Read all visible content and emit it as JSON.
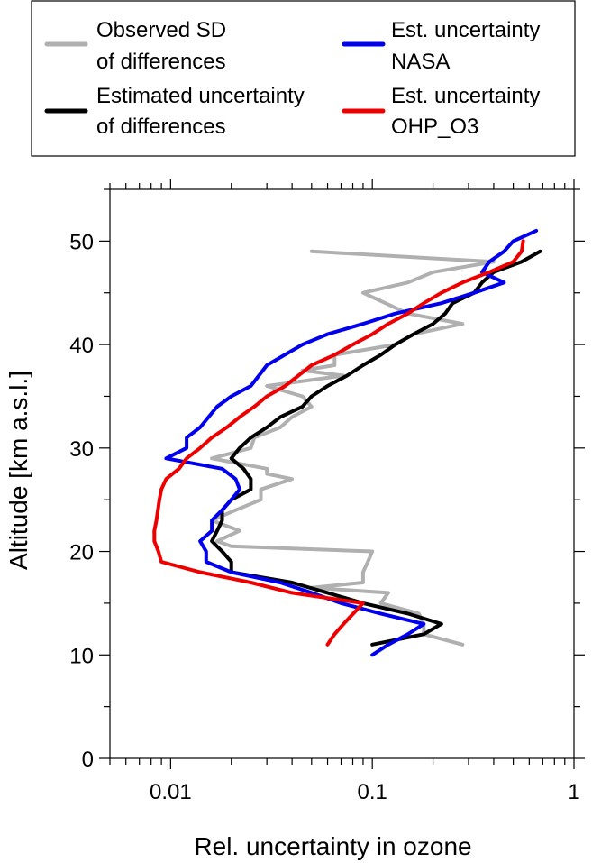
{
  "chart_data": {
    "type": "line",
    "xlabel": "Rel. uncertainty in ozone",
    "ylabel": "Altitude [km a.s.l.]",
    "xscale": "log",
    "xlim": [
      0.005,
      1
    ],
    "ylim": [
      0,
      55
    ],
    "x_tick_labels": [
      {
        "value": 0.01,
        "label": "0.01"
      },
      {
        "value": 0.1,
        "label": "0.1"
      },
      {
        "value": 1,
        "label": "1"
      }
    ],
    "y_ticks": [
      0,
      10,
      20,
      30,
      40,
      50
    ],
    "legend_position": "top",
    "series": [
      {
        "name_lines": [
          "Observed SD",
          "of differences"
        ],
        "color": "#b0b0b0",
        "points": [
          [
            0.28,
            11
          ],
          [
            0.18,
            12
          ],
          [
            0.18,
            13
          ],
          [
            0.17,
            14
          ],
          [
            0.11,
            15
          ],
          [
            0.12,
            16
          ],
          [
            0.05,
            16.5
          ],
          [
            0.09,
            17
          ],
          [
            0.09,
            18
          ],
          [
            0.095,
            19
          ],
          [
            0.1,
            20
          ],
          [
            0.02,
            20.5
          ],
          [
            0.017,
            21
          ],
          [
            0.022,
            22
          ],
          [
            0.016,
            23
          ],
          [
            0.021,
            24
          ],
          [
            0.028,
            25
          ],
          [
            0.028,
            26
          ],
          [
            0.04,
            27
          ],
          [
            0.03,
            27.5
          ],
          [
            0.03,
            28
          ],
          [
            0.016,
            29
          ],
          [
            0.025,
            30
          ],
          [
            0.026,
            31
          ],
          [
            0.035,
            32
          ],
          [
            0.04,
            33
          ],
          [
            0.05,
            34
          ],
          [
            0.045,
            35
          ],
          [
            0.03,
            36
          ],
          [
            0.072,
            37
          ],
          [
            0.045,
            37.5
          ],
          [
            0.065,
            38
          ],
          [
            0.065,
            39
          ],
          [
            0.13,
            40
          ],
          [
            0.16,
            41
          ],
          [
            0.28,
            42
          ],
          [
            0.15,
            43
          ],
          [
            0.09,
            45
          ],
          [
            0.15,
            46
          ],
          [
            0.2,
            47
          ],
          [
            0.4,
            48
          ],
          [
            0.05,
            49
          ]
        ]
      },
      {
        "name_lines": [
          "Estimated uncertainty",
          "of differences"
        ],
        "color": "#000000",
        "points": [
          [
            0.1,
            11
          ],
          [
            0.18,
            12
          ],
          [
            0.22,
            13
          ],
          [
            0.15,
            14
          ],
          [
            0.09,
            15
          ],
          [
            0.06,
            16
          ],
          [
            0.04,
            17
          ],
          [
            0.02,
            18
          ],
          [
            0.02,
            19
          ],
          [
            0.018,
            20
          ],
          [
            0.016,
            21
          ],
          [
            0.017,
            22
          ],
          [
            0.018,
            23
          ],
          [
            0.018,
            24
          ],
          [
            0.02,
            25
          ],
          [
            0.025,
            26
          ],
          [
            0.025,
            27
          ],
          [
            0.023,
            28
          ],
          [
            0.02,
            29
          ],
          [
            0.022,
            30
          ],
          [
            0.025,
            31
          ],
          [
            0.03,
            32
          ],
          [
            0.035,
            33
          ],
          [
            0.045,
            34
          ],
          [
            0.05,
            35
          ],
          [
            0.06,
            36
          ],
          [
            0.075,
            37
          ],
          [
            0.09,
            38
          ],
          [
            0.11,
            39
          ],
          [
            0.13,
            40
          ],
          [
            0.16,
            41
          ],
          [
            0.2,
            42
          ],
          [
            0.23,
            43
          ],
          [
            0.25,
            44
          ],
          [
            0.32,
            45
          ],
          [
            0.35,
            46
          ],
          [
            0.4,
            47
          ],
          [
            0.55,
            48
          ],
          [
            0.68,
            49
          ]
        ]
      },
      {
        "name_lines": [
          "Est. uncertainty",
          "NASA"
        ],
        "color": "#0000ee",
        "points": [
          [
            0.1,
            10
          ],
          [
            0.12,
            11
          ],
          [
            0.15,
            12
          ],
          [
            0.18,
            13
          ],
          [
            0.11,
            14
          ],
          [
            0.07,
            15
          ],
          [
            0.05,
            16
          ],
          [
            0.035,
            17
          ],
          [
            0.02,
            18
          ],
          [
            0.015,
            19
          ],
          [
            0.015,
            20
          ],
          [
            0.014,
            21
          ],
          [
            0.016,
            22
          ],
          [
            0.016,
            23
          ],
          [
            0.018,
            24
          ],
          [
            0.02,
            25
          ],
          [
            0.022,
            26
          ],
          [
            0.021,
            27
          ],
          [
            0.018,
            28
          ],
          [
            0.0095,
            29
          ],
          [
            0.012,
            30
          ],
          [
            0.012,
            31
          ],
          [
            0.014,
            32
          ],
          [
            0.017,
            34
          ],
          [
            0.02,
            35
          ],
          [
            0.025,
            36
          ],
          [
            0.03,
            38
          ],
          [
            0.045,
            40
          ],
          [
            0.06,
            41
          ],
          [
            0.09,
            42
          ],
          [
            0.13,
            43
          ],
          [
            0.22,
            44
          ],
          [
            0.32,
            45
          ],
          [
            0.45,
            46
          ],
          [
            0.35,
            47
          ],
          [
            0.38,
            48
          ],
          [
            0.45,
            49
          ],
          [
            0.5,
            50
          ],
          [
            0.65,
            51
          ]
        ]
      },
      {
        "name_lines": [
          "Est. uncertainty",
          "OHP_O3"
        ],
        "color": "#ee0000",
        "points": [
          [
            0.06,
            11
          ],
          [
            0.065,
            12
          ],
          [
            0.072,
            13
          ],
          [
            0.09,
            15
          ],
          [
            0.04,
            16
          ],
          [
            0.025,
            17
          ],
          [
            0.014,
            18
          ],
          [
            0.009,
            19
          ],
          [
            0.0087,
            20
          ],
          [
            0.0083,
            21
          ],
          [
            0.0083,
            22
          ],
          [
            0.0085,
            23
          ],
          [
            0.0088,
            25
          ],
          [
            0.009,
            26
          ],
          [
            0.0095,
            27
          ],
          [
            0.011,
            28
          ],
          [
            0.012,
            29
          ],
          [
            0.014,
            30
          ],
          [
            0.016,
            31
          ],
          [
            0.019,
            32
          ],
          [
            0.022,
            33
          ],
          [
            0.026,
            34
          ],
          [
            0.03,
            35
          ],
          [
            0.037,
            36
          ],
          [
            0.05,
            38
          ],
          [
            0.065,
            39
          ],
          [
            0.08,
            40
          ],
          [
            0.1,
            41
          ],
          [
            0.12,
            42
          ],
          [
            0.15,
            43
          ],
          [
            0.18,
            44
          ],
          [
            0.22,
            45
          ],
          [
            0.28,
            46
          ],
          [
            0.38,
            47
          ],
          [
            0.5,
            48
          ],
          [
            0.55,
            49
          ],
          [
            0.56,
            50
          ]
        ]
      }
    ]
  }
}
